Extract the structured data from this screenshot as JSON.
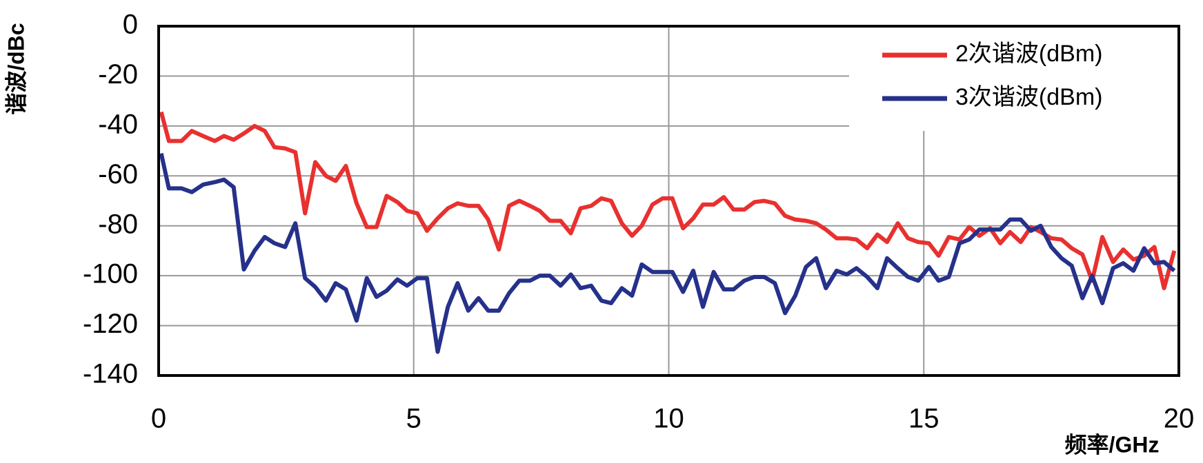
{
  "chart_data": {
    "type": "line",
    "ylabel": "谐波/dBc",
    "xlabel": "频率/GHz",
    "x": [
      0.05,
      0.2,
      0.45,
      0.65,
      0.87,
      1.1,
      1.28,
      1.47,
      1.67,
      1.88,
      2.08,
      2.27,
      2.48,
      2.68,
      2.87,
      3.07,
      3.28,
      3.47,
      3.67,
      3.88,
      4.08,
      4.27,
      4.47,
      4.68,
      4.87,
      5.07,
      5.26,
      5.47,
      5.67,
      5.86,
      6.07,
      6.27,
      6.46,
      6.67,
      6.87,
      7.07,
      7.28,
      7.47,
      7.67,
      7.88,
      8.08,
      8.27,
      8.48,
      8.68,
      8.87,
      9.08,
      9.28,
      9.47,
      9.68,
      9.88,
      10.07,
      10.28,
      10.48,
      10.67,
      10.88,
      11.08,
      11.27,
      11.48,
      11.68,
      11.87,
      12.08,
      12.28,
      12.48,
      12.69,
      12.89,
      13.08,
      13.29,
      13.49,
      13.68,
      13.89,
      14.09,
      14.28,
      14.49,
      14.69,
      14.89,
      15.1,
      15.29,
      15.49,
      15.7,
      15.89,
      16.09,
      16.3,
      16.5,
      16.69,
      16.9,
      17.1,
      17.29,
      17.5,
      17.7,
      17.9,
      18.11,
      18.3,
      18.5,
      18.71,
      18.91,
      19.11,
      19.32,
      19.52,
      19.71,
      19.91
    ],
    "series": [
      {
        "name": "2次谐波(dBm)",
        "color": "#e8312f",
        "values": [
          -34.4,
          -46,
          -46,
          -42,
          -44,
          -46,
          -44,
          -45.5,
          -43,
          -40,
          -42,
          -48.5,
          -49,
          -50.5,
          -75,
          -54.5,
          -60,
          -62,
          -56,
          -71,
          -80.5,
          -80.5,
          -68,
          -70.5,
          -74,
          -75,
          -82,
          -77,
          -73,
          -71,
          -72,
          -72,
          -77.5,
          -89.5,
          -72,
          -70,
          -72,
          -74,
          -78,
          -78,
          -83,
          -73,
          -72,
          -69,
          -70,
          -79,
          -84,
          -80,
          -71.5,
          -69,
          -69,
          -81,
          -77,
          -71.5,
          -71.5,
          -68.5,
          -73.5,
          -73.5,
          -70.5,
          -70,
          -71,
          -76,
          -77.5,
          -78,
          -79,
          -81.5,
          -85,
          -85,
          -85.5,
          -89,
          -83.5,
          -86.5,
          -79,
          -85,
          -86.5,
          -87,
          -92,
          -84.5,
          -85.5,
          -80.5,
          -84,
          -81,
          -87,
          -82.5,
          -86.5,
          -80.5,
          -82.5,
          -85,
          -85.5,
          -89,
          -91.5,
          -102,
          -84.5,
          -94.5,
          -89.5,
          -93.5,
          -92,
          -88.5,
          -105,
          -90
        ]
      },
      {
        "name": "3次谐波(dBm)",
        "color": "#25318a",
        "values": [
          -51,
          -65,
          -65,
          -66.5,
          -63.5,
          -62.5,
          -61.5,
          -64.5,
          -97.5,
          -90,
          -84.5,
          -87,
          -88.5,
          -79,
          -101,
          -104.5,
          -110,
          -103,
          -105.5,
          -118,
          -101,
          -108.5,
          -106,
          -101.5,
          -104,
          -101,
          -101,
          -130.5,
          -112.5,
          -103,
          -114,
          -109,
          -114,
          -114,
          -107,
          -102,
          -102,
          -100,
          -100,
          -104,
          -99.5,
          -105,
          -104,
          -110,
          -111,
          -105,
          -108,
          -95.5,
          -98.5,
          -98.5,
          -98.5,
          -106.5,
          -98,
          -112.5,
          -98.5,
          -105.5,
          -105.5,
          -102,
          -100.5,
          -100.5,
          -103,
          -115,
          -108,
          -96.5,
          -93,
          -105,
          -98,
          -99.5,
          -97,
          -100.5,
          -105,
          -93,
          -97,
          -100.5,
          -102,
          -96.5,
          -102,
          -100.5,
          -87,
          -85.5,
          -81.5,
          -81.5,
          -81.5,
          -77.5,
          -77.5,
          -82,
          -80,
          -88.5,
          -93,
          -96,
          -109,
          -100,
          -111,
          -97,
          -95,
          -98,
          -89,
          -95,
          -94.5,
          -98
        ]
      }
    ],
    "xlim": [
      0,
      20
    ],
    "xticks": [
      0,
      5,
      10,
      15,
      20
    ],
    "ylim": [
      -140,
      0
    ],
    "yticks": [
      0,
      -20,
      -40,
      -60,
      -80,
      -100,
      -120,
      -140
    ],
    "grid": true,
    "legend": "upper right"
  }
}
